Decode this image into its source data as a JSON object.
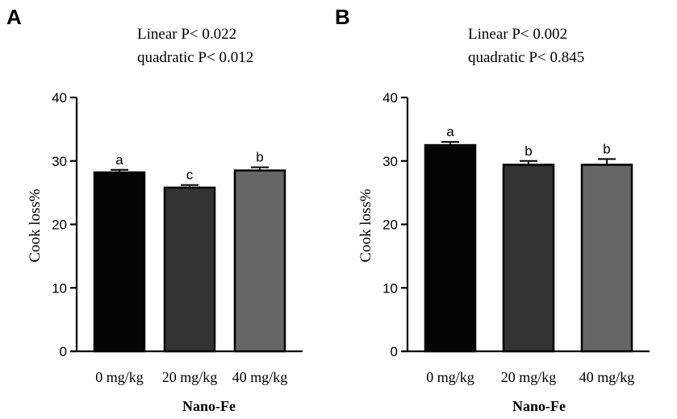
{
  "chart_data": [
    {
      "type": "bar",
      "panel": "A",
      "stats": [
        "Linear P< 0.022",
        "quadratic P< 0.012"
      ],
      "categories": [
        "0 mg/kg",
        "20 mg/kg",
        "40 mg/kg"
      ],
      "values": [
        28.2,
        25.8,
        28.5
      ],
      "errors": [
        0.4,
        0.4,
        0.5
      ],
      "significance": [
        "a",
        "c",
        "b"
      ],
      "colors": [
        "#050505",
        "#333333",
        "#666666"
      ],
      "xlabel": "Nano-Fe",
      "ylabel": "Cook loss%",
      "ylim": [
        0,
        40
      ],
      "yticks": [
        "0",
        "10",
        "20",
        "30",
        "40"
      ]
    },
    {
      "type": "bar",
      "panel": "B",
      "stats": [
        "Linear P< 0.002",
        "quadratic P< 0.845"
      ],
      "categories": [
        "0 mg/kg",
        "20 mg/kg",
        "40 mg/kg"
      ],
      "values": [
        32.5,
        29.4,
        29.4
      ],
      "errors": [
        0.5,
        0.6,
        0.9
      ],
      "significance": [
        "a",
        "b",
        "b"
      ],
      "colors": [
        "#050505",
        "#333333",
        "#666666"
      ],
      "xlabel": "Nano-Fe",
      "ylabel": "Cook loss%",
      "ylim": [
        0,
        40
      ],
      "yticks": [
        "0",
        "10",
        "20",
        "30",
        "40"
      ]
    }
  ]
}
